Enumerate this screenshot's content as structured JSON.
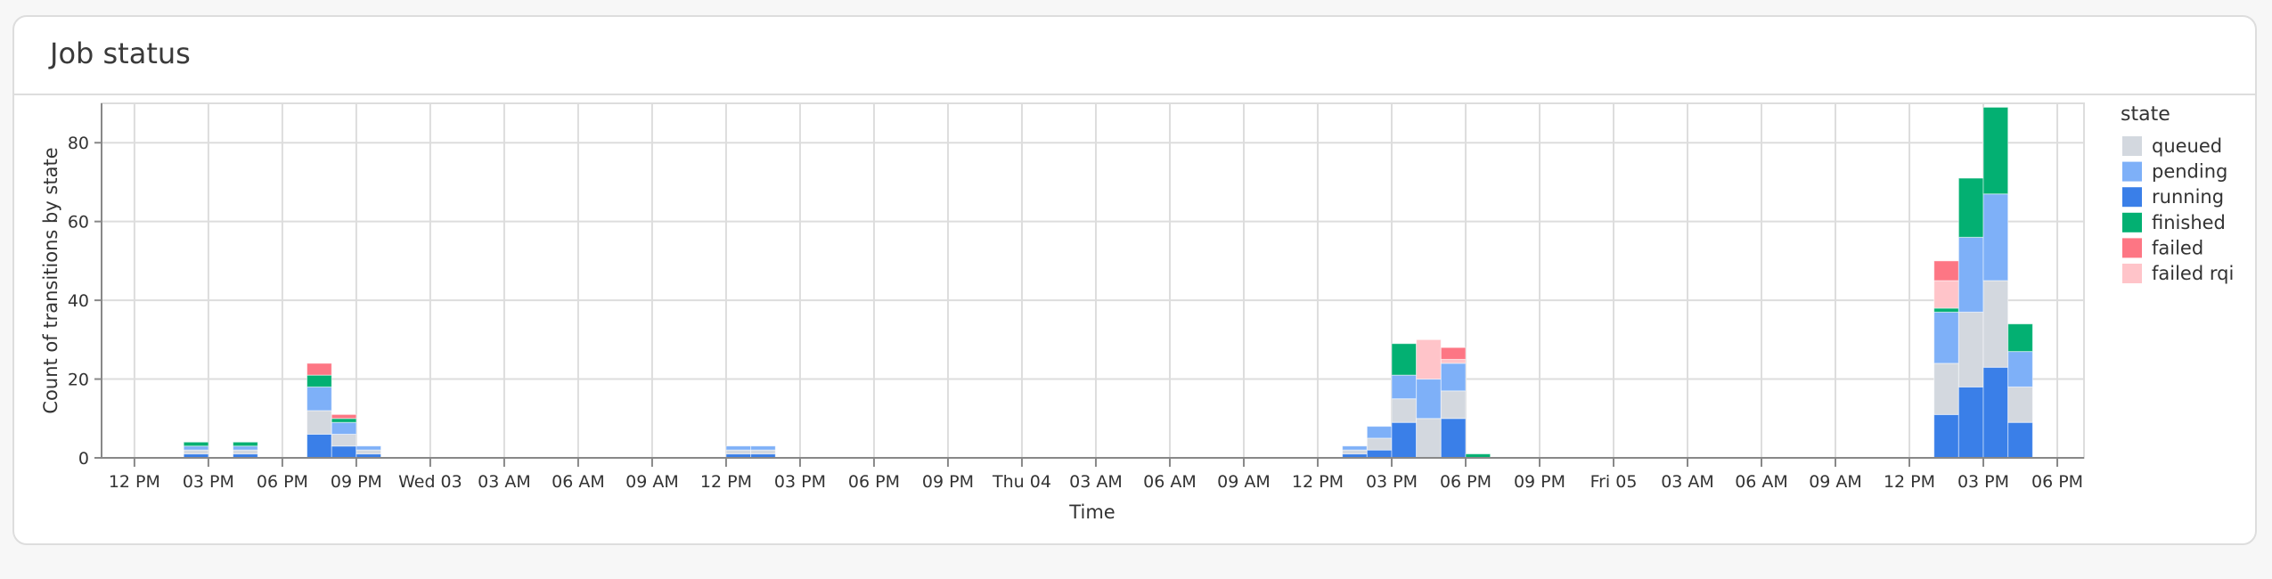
{
  "card": {
    "title": "Job status"
  },
  "chart_data": {
    "type": "bar",
    "stacked": true,
    "title": "",
    "xlabel": "Time",
    "ylabel": "Count of transitions by state",
    "ylim": [
      0,
      90
    ],
    "yticks": [
      0,
      20,
      40,
      60,
      80
    ],
    "grid": true,
    "bin": "1 hour",
    "xlim": [
      "Tue 02 10:40",
      "Fri 05 19:05"
    ],
    "xticks": [
      {
        "t": "Tue 02 12:00",
        "label": "12 PM"
      },
      {
        "t": "Tue 02 15:00",
        "label": "03 PM"
      },
      {
        "t": "Tue 02 18:00",
        "label": "06 PM"
      },
      {
        "t": "Tue 02 21:00",
        "label": "09 PM"
      },
      {
        "t": "Wed 03 00:00",
        "label": "Wed 03"
      },
      {
        "t": "Wed 03 03:00",
        "label": "03 AM"
      },
      {
        "t": "Wed 03 06:00",
        "label": "06 AM"
      },
      {
        "t": "Wed 03 09:00",
        "label": "09 AM"
      },
      {
        "t": "Wed 03 12:00",
        "label": "12 PM"
      },
      {
        "t": "Wed 03 15:00",
        "label": "03 PM"
      },
      {
        "t": "Wed 03 18:00",
        "label": "06 PM"
      },
      {
        "t": "Wed 03 21:00",
        "label": "09 PM"
      },
      {
        "t": "Thu 04 00:00",
        "label": "Thu 04"
      },
      {
        "t": "Thu 04 03:00",
        "label": "03 AM"
      },
      {
        "t": "Thu 04 06:00",
        "label": "06 AM"
      },
      {
        "t": "Thu 04 09:00",
        "label": "09 AM"
      },
      {
        "t": "Thu 04 12:00",
        "label": "12 PM"
      },
      {
        "t": "Thu 04 15:00",
        "label": "03 PM"
      },
      {
        "t": "Thu 04 18:00",
        "label": "06 PM"
      },
      {
        "t": "Thu 04 21:00",
        "label": "09 PM"
      },
      {
        "t": "Fri 05 00:00",
        "label": "Fri 05"
      },
      {
        "t": "Fri 05 03:00",
        "label": "03 AM"
      },
      {
        "t": "Fri 05 06:00",
        "label": "06 AM"
      },
      {
        "t": "Fri 05 09:00",
        "label": "09 AM"
      },
      {
        "t": "Fri 05 12:00",
        "label": "12 PM"
      },
      {
        "t": "Fri 05 15:00",
        "label": "03 PM"
      },
      {
        "t": "Fri 05 18:00",
        "label": "06 PM"
      }
    ],
    "legend": {
      "title": "state",
      "position": "right"
    },
    "series_order": [
      "running",
      "queued",
      "pending",
      "finished",
      "failed rqi",
      "failed"
    ],
    "legend_order": [
      "queued",
      "pending",
      "running",
      "finished",
      "failed",
      "failed rqi"
    ],
    "colors": {
      "queued": "#d3d8df",
      "pending": "#7eb0f8",
      "running": "#3a7fe8",
      "finished": "#03b072",
      "failed": "#fd7684",
      "failed rqi": "#ffc4c9"
    },
    "bins": [
      {
        "start": "Tue 02 14:00",
        "running": 1,
        "queued": 1,
        "pending": 1,
        "finished": 1
      },
      {
        "start": "Tue 02 16:00",
        "running": 1,
        "queued": 1,
        "pending": 1,
        "finished": 1
      },
      {
        "start": "Tue 02 19:00",
        "running": 6,
        "queued": 6,
        "pending": 6,
        "finished": 3,
        "failed": 3
      },
      {
        "start": "Tue 02 20:00",
        "running": 3,
        "queued": 3,
        "pending": 3,
        "finished": 1,
        "failed": 1
      },
      {
        "start": "Tue 02 21:00",
        "running": 1,
        "queued": 1,
        "pending": 1
      },
      {
        "start": "Wed 03 12:00",
        "running": 1,
        "queued": 1,
        "pending": 1
      },
      {
        "start": "Wed 03 13:00",
        "running": 1,
        "queued": 1,
        "pending": 1
      },
      {
        "start": "Thu 04 13:00",
        "running": 1,
        "queued": 1,
        "pending": 1
      },
      {
        "start": "Thu 04 14:00",
        "running": 2,
        "queued": 3,
        "pending": 3
      },
      {
        "start": "Thu 04 15:00",
        "running": 9,
        "queued": 6,
        "pending": 6,
        "finished": 8
      },
      {
        "start": "Thu 04 16:00",
        "queued": 10,
        "pending": 10,
        "failed rqi": 10
      },
      {
        "start": "Thu 04 17:00",
        "running": 10,
        "queued": 7,
        "pending": 7,
        "failed rqi": 1,
        "failed": 3
      },
      {
        "start": "Thu 04 18:00",
        "finished": 1
      },
      {
        "start": "Fri 05 13:00",
        "running": 11,
        "queued": 13,
        "pending": 13,
        "finished": 1,
        "failed rqi": 7,
        "failed": 5
      },
      {
        "start": "Fri 05 14:00",
        "running": 18,
        "queued": 19,
        "pending": 19,
        "finished": 15
      },
      {
        "start": "Fri 05 15:00",
        "running": 23,
        "queued": 22,
        "pending": 22,
        "finished": 22
      },
      {
        "start": "Fri 05 16:00",
        "running": 9,
        "queued": 9,
        "pending": 9,
        "finished": 7
      }
    ]
  }
}
